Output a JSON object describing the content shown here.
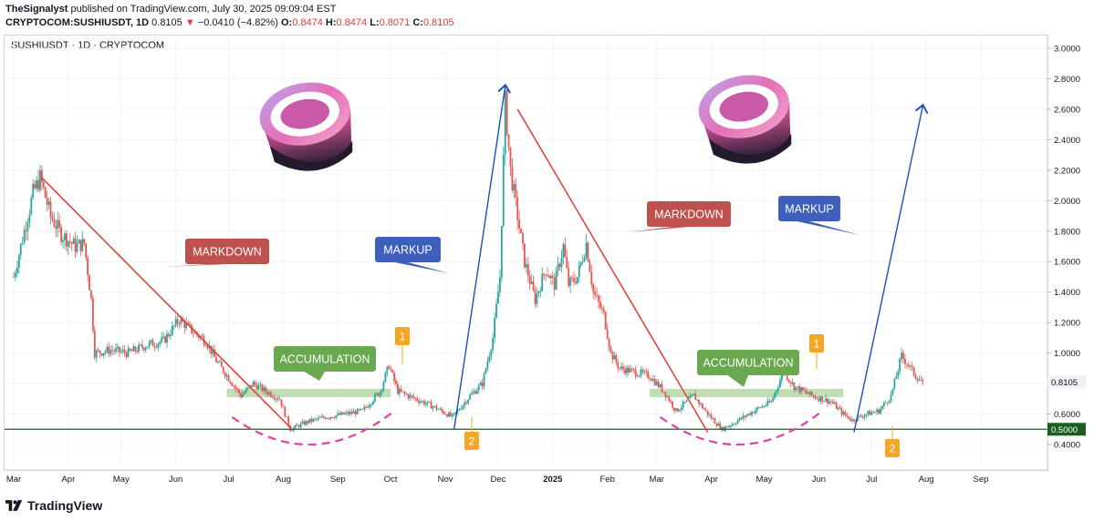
{
  "header": {
    "author": "TheSignalyst",
    "published": "published on TradingView.com, July 30, 2025 09:09:04 EST",
    "symbol": "CRYPTOCOM:SUSHIUSDT, 1D",
    "last": "0.8105",
    "change": "−0.0410 (−4.82%)",
    "open_label": "O:",
    "open": "0.8474",
    "high_label": "H:",
    "high": "0.8474",
    "low_label": "L:",
    "low": "0.8071",
    "close_label": "C:",
    "close": "0.8105"
  },
  "legend": "SUSHIUSDT · 1D · CRYPTOCOM",
  "footer": {
    "brand": "TradingView"
  },
  "colors": {
    "up": "#26a69a",
    "down": "#ef5350",
    "markdown": "#c0504d",
    "markup": "#3f5fbf",
    "accumulation": "#6aa84f",
    "support": "#1b5e20",
    "marker": "#f5a623",
    "arc": "#e040a0",
    "trend": "#e53935",
    "arrow": "#1f4fbf"
  },
  "chart_data": {
    "type": "candlestick",
    "ylim": [
      0.25,
      3.05
    ],
    "y_ticks": [
      "3.0000",
      "2.8000",
      "2.6000",
      "2.4000",
      "2.2000",
      "2.0000",
      "1.8000",
      "1.6000",
      "1.4000",
      "1.2000",
      "1.0000",
      "0.8000",
      "0.6000",
      "0.4000"
    ],
    "x_ticks": [
      "Mar",
      "Apr",
      "May",
      "Jun",
      "Jul",
      "Aug",
      "Sep",
      "Oct",
      "Nov",
      "Dec",
      "2025",
      "Feb",
      "Mar",
      "Apr",
      "May",
      "Jun",
      "Jul",
      "Aug",
      "Sep"
    ],
    "x_range": [
      "2024-03-01",
      "2025-09-30"
    ],
    "last_price": 0.8105,
    "support_level": 0.5,
    "close_path": [
      [
        "2024-03-01",
        1.5
      ],
      [
        "2024-03-06",
        1.75
      ],
      [
        "2024-03-12",
        2.05
      ],
      [
        "2024-03-16",
        2.15
      ],
      [
        "2024-03-22",
        1.9
      ],
      [
        "2024-03-28",
        1.78
      ],
      [
        "2024-04-05",
        1.7
      ],
      [
        "2024-04-10",
        1.72
      ],
      [
        "2024-04-14",
        1.35
      ],
      [
        "2024-04-16",
        1.0
      ],
      [
        "2024-04-25",
        1.02
      ],
      [
        "2024-05-05",
        1.0
      ],
      [
        "2024-05-15",
        1.05
      ],
      [
        "2024-05-25",
        1.08
      ],
      [
        "2024-06-03",
        1.22
      ],
      [
        "2024-06-10",
        1.15
      ],
      [
        "2024-06-18",
        1.08
      ],
      [
        "2024-06-24",
        0.95
      ],
      [
        "2024-07-02",
        0.82
      ],
      [
        "2024-07-08",
        0.72
      ],
      [
        "2024-07-15",
        0.8
      ],
      [
        "2024-07-22",
        0.75
      ],
      [
        "2024-07-30",
        0.7
      ],
      [
        "2024-08-05",
        0.5
      ],
      [
        "2024-08-15",
        0.55
      ],
      [
        "2024-08-25",
        0.58
      ],
      [
        "2024-09-05",
        0.6
      ],
      [
        "2024-09-15",
        0.62
      ],
      [
        "2024-09-25",
        0.75
      ],
      [
        "2024-09-30",
        0.92
      ],
      [
        "2024-10-05",
        0.75
      ],
      [
        "2024-10-15",
        0.7
      ],
      [
        "2024-10-25",
        0.65
      ],
      [
        "2024-11-05",
        0.58
      ],
      [
        "2024-11-08",
        0.62
      ],
      [
        "2024-11-15",
        0.72
      ],
      [
        "2024-11-22",
        0.8
      ],
      [
        "2024-11-28",
        1.1
      ],
      [
        "2024-12-02",
        1.5
      ],
      [
        "2024-12-05",
        2.65
      ],
      [
        "2024-12-08",
        2.2
      ],
      [
        "2024-12-12",
        1.9
      ],
      [
        "2024-12-16",
        1.6
      ],
      [
        "2024-12-22",
        1.35
      ],
      [
        "2024-12-28",
        1.55
      ],
      [
        "2025-01-02",
        1.45
      ],
      [
        "2025-01-07",
        1.7
      ],
      [
        "2025-01-10",
        1.45
      ],
      [
        "2025-01-15",
        1.5
      ],
      [
        "2025-01-20",
        1.72
      ],
      [
        "2025-01-24",
        1.4
      ],
      [
        "2025-01-30",
        1.25
      ],
      [
        "2025-02-03",
        1.0
      ],
      [
        "2025-02-08",
        0.9
      ],
      [
        "2025-02-15",
        0.88
      ],
      [
        "2025-02-25",
        0.85
      ],
      [
        "2025-03-05",
        0.75
      ],
      [
        "2025-03-12",
        0.62
      ],
      [
        "2025-03-22",
        0.72
      ],
      [
        "2025-03-30",
        0.6
      ],
      [
        "2025-04-07",
        0.5
      ],
      [
        "2025-04-15",
        0.55
      ],
      [
        "2025-04-25",
        0.62
      ],
      [
        "2025-05-05",
        0.68
      ],
      [
        "2025-05-12",
        0.88
      ],
      [
        "2025-05-18",
        0.78
      ],
      [
        "2025-05-28",
        0.72
      ],
      [
        "2025-06-08",
        0.68
      ],
      [
        "2025-06-15",
        0.6
      ],
      [
        "2025-06-20",
        0.56
      ],
      [
        "2025-06-28",
        0.6
      ],
      [
        "2025-07-05",
        0.62
      ],
      [
        "2025-07-12",
        0.72
      ],
      [
        "2025-07-18",
        0.98
      ],
      [
        "2025-07-22",
        0.92
      ],
      [
        "2025-07-26",
        0.85
      ],
      [
        "2025-07-30",
        0.81
      ]
    ],
    "annotations": {
      "markdown_label": "MARKDOWN",
      "markup_label": "MARKUP",
      "accumulation_label": "ACCUMULATION",
      "marker_1": "1",
      "marker_2": "2"
    }
  }
}
